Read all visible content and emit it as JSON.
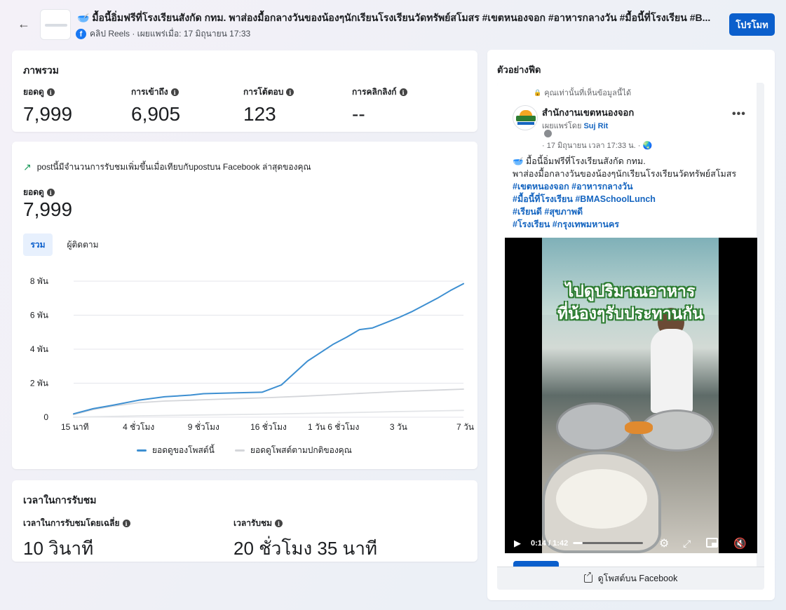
{
  "header": {
    "title": "🥣 มื้อนี้อิ่มฟรีที่โรงเรียนสังกัด กทม. พาส่องมื้อกลางวันของน้องๆนักเรียนโรงเรียนวัดทรัพย์สโมสร #เขตหนองจอก #อาหารกลางวัน #มื้อนี้ที่โรงเรียน #B...",
    "meta": "คลิป Reels · เผยแพร่เมื่อ: 17 มิถุนายน 17:33",
    "fb_icon": "f",
    "promote_label": "โปรโมท",
    "back_icon": "←"
  },
  "overview": {
    "title": "ภาพรวม",
    "stats": [
      {
        "label": "ยอดดู",
        "value": "7,999"
      },
      {
        "label": "การเข้าถึง",
        "value": "6,905"
      },
      {
        "label": "การโต้ตอบ",
        "value": "123"
      },
      {
        "label": "การคลิกลิงก์",
        "value": "--"
      }
    ]
  },
  "performance": {
    "trend_text": "postนี้มีจำนวนการรับชมเพิ่มขึ้นเมื่อเทียบกับpostบน Facebook ล่าสุดของคุณ",
    "trend_icon": "↗",
    "views_label": "ยอดดู",
    "views_value": "7,999",
    "tabs": [
      "รวม",
      "ผู้ติดตาม"
    ],
    "legend": [
      "ยอดดูของโพสต์นี้",
      "ยอดดูโพสต์ตามปกติของคุณ"
    ]
  },
  "chart_data": {
    "type": "line",
    "title": "",
    "xlabel": "",
    "ylabel": "",
    "ylim": [
      0,
      8000
    ],
    "y_ticks": [
      0,
      2000,
      4000,
      6000,
      8000
    ],
    "y_tick_labels": [
      "0",
      "2 พัน",
      "4 พัน",
      "6 พัน",
      "8 พัน"
    ],
    "x_tick_labels": [
      "15 นาที",
      "4 ชั่วโมง",
      "9 ชั่วโมง",
      "16 ชั่วโมง",
      "1 วัน 6 ชั่วโมง",
      "3 วัน",
      "7 วัน"
    ],
    "x_tick_positions": [
      0,
      1,
      2,
      3,
      4,
      5,
      6
    ],
    "grid": true,
    "legend_position": "bottom",
    "series": [
      {
        "name": "ยอดดูของโพสต์นี้",
        "color": "#3d8fd1",
        "x": [
          0,
          0.3,
          0.6,
          1.0,
          1.4,
          1.8,
          2.0,
          2.5,
          2.9,
          3.2,
          3.6,
          4.0,
          4.2,
          4.4,
          4.6,
          4.8,
          5.0,
          5.2,
          5.4,
          5.6,
          5.8,
          6.0
        ],
        "values": [
          200,
          500,
          700,
          1000,
          1200,
          1300,
          1380,
          1430,
          1470,
          1900,
          3300,
          4300,
          4700,
          5150,
          5250,
          5550,
          5850,
          6200,
          6600,
          7000,
          7450,
          7850
        ]
      },
      {
        "name": "ยอดดูโพสต์ตามปกติของคุณ",
        "color": "#d4d6da",
        "x": [
          0,
          0.3,
          0.6,
          1.0,
          1.4,
          1.8,
          2.2,
          2.6,
          3.0,
          3.5,
          4.0,
          4.5,
          5.0,
          5.5,
          6.0
        ],
        "values": [
          150,
          450,
          650,
          850,
          950,
          1000,
          1050,
          1100,
          1150,
          1230,
          1320,
          1420,
          1510,
          1580,
          1650
        ]
      },
      {
        "name": "",
        "color": "#e3e5e8",
        "x": [
          0,
          1,
          2,
          3,
          4,
          5,
          6
        ],
        "values": [
          0,
          80,
          130,
          180,
          250,
          330,
          400
        ]
      }
    ]
  },
  "watch_time": {
    "title": "เวลาในการรับชม",
    "avg_label": "เวลาในการรับชมโดยเฉลี่ย",
    "avg_value": "10 วินาที",
    "total_label": "เวลารับชม",
    "total_value": "20 ชั่วโมง 35 นาที"
  },
  "preview": {
    "title": "ตัวอย่างฟีด",
    "private_note": "คุณเท่านั้นที่เห็นข้อมูลนี้ได้",
    "lock_icon": "🔒",
    "page_name": "สำนักงานเขตหนองจอก",
    "published_by_prefix": "เผยแพร่โดย ",
    "published_by_name": "Suj Rit",
    "date": "· 17 มิถุนายน เวลา 17:33 น. · 🌏",
    "more_icon": "•••",
    "caption_line1": "🥣 มื้อนี้อิ่มฟรีที่โรงเรียนสังกัด กทม.",
    "caption_line2": "พาส่องมื้อกลางวันของน้องๆนักเรียนโรงเรียนวัดทรัพย์สโมสร",
    "hashtags": [
      "#เขตหนองจอก #อาหารกลางวัน",
      "#มื้อนี้ที่โรงเรียน #BMASchoolLunch",
      "#เรียนดี #สุขภาพดี",
      "#โรงเรียน #กรุงเทพมหานคร"
    ],
    "video_overlay_line1": "ไปดูปริมาณอาหาร",
    "video_overlay_line2": "ที่น้องๆรับประทานกัน",
    "video_time": "0:14 / 1:42",
    "video_progress": 0.136,
    "play_icon": "▶",
    "gear_icon": "⚙",
    "expand_icon": "⤢",
    "volume_icon": "🔇",
    "view_on_fb_label": "ดูโพสต์บน Facebook"
  },
  "colors": {
    "accent": "#0b5fcc",
    "post_line": "#3d8fd1",
    "baseline_line": "#d4d6da",
    "trend_up": "#1b9a5a",
    "hashtag": "#1565c0"
  }
}
